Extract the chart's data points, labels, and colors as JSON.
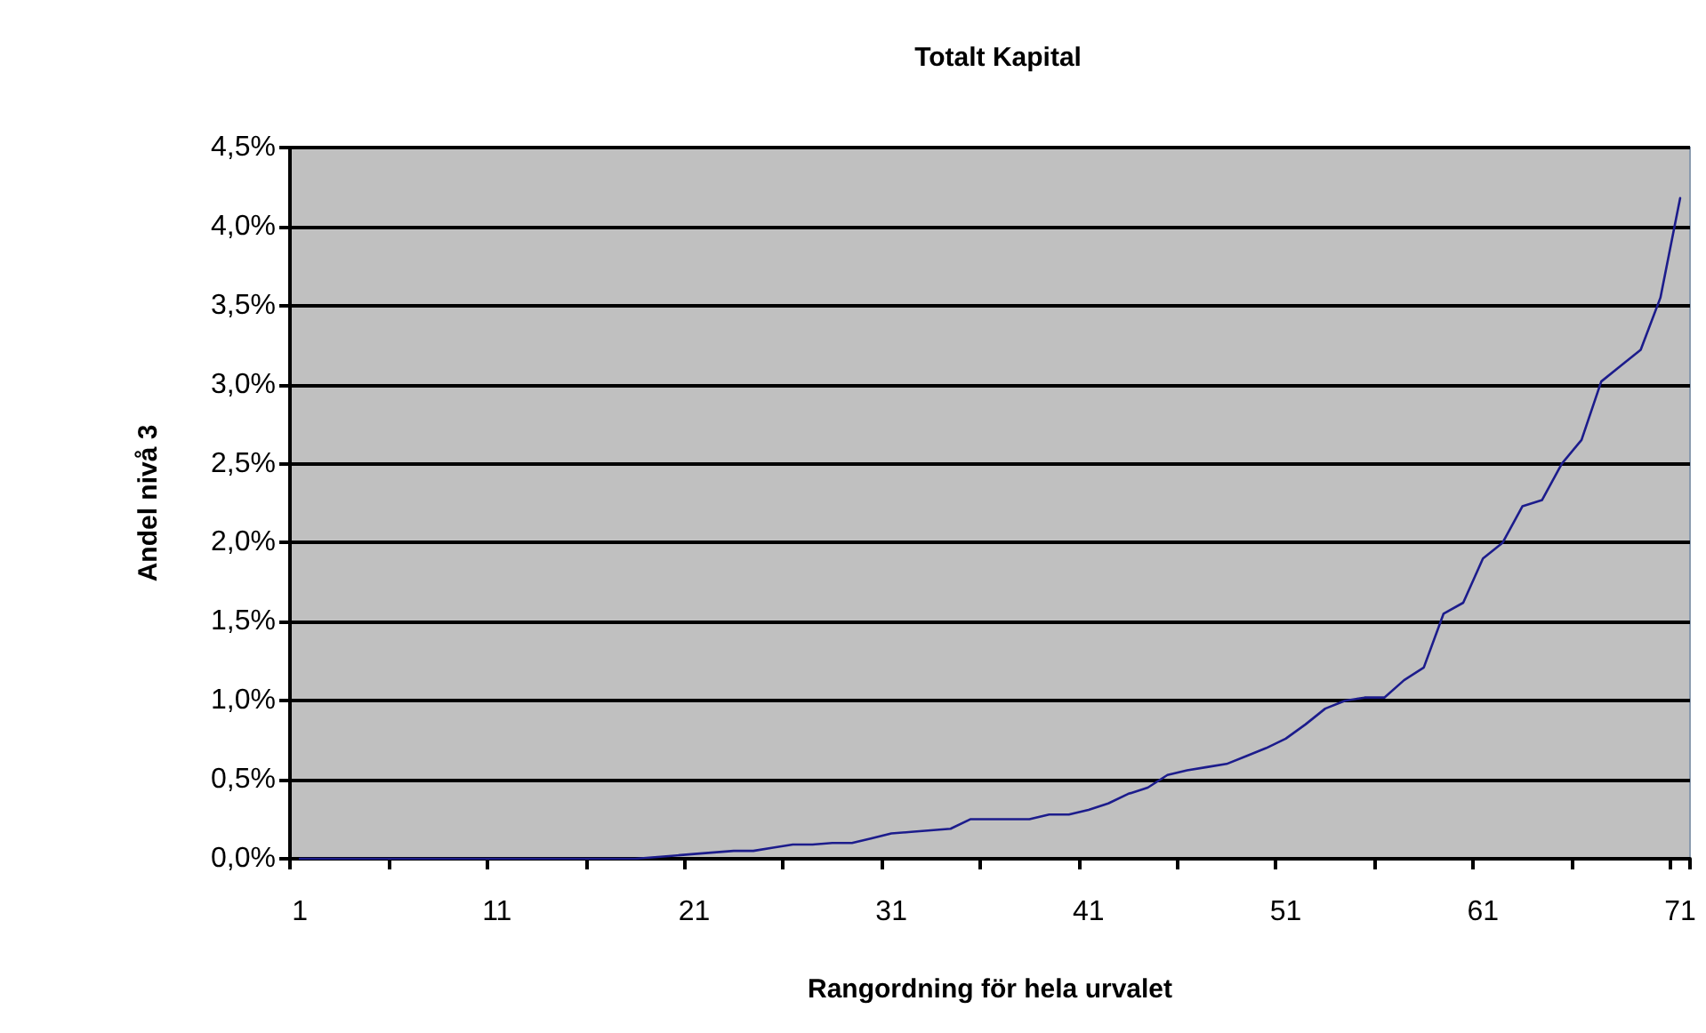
{
  "chart_data": {
    "type": "line",
    "title": "Totalt Kapital",
    "xlabel": "Rangordning för hela urvalet",
    "ylabel": "Andel nivå 3",
    "categories": [
      "1",
      null,
      null,
      null,
      null,
      null,
      null,
      null,
      null,
      null,
      "11",
      null,
      null,
      null,
      null,
      null,
      null,
      null,
      null,
      null,
      "21",
      null,
      null,
      null,
      null,
      null,
      null,
      null,
      null,
      null,
      "31",
      null,
      null,
      null,
      null,
      null,
      null,
      null,
      null,
      null,
      "41",
      null,
      null,
      null,
      null,
      null,
      null,
      null,
      null,
      null,
      "51",
      null,
      null,
      null,
      null,
      null,
      null,
      null,
      null,
      null,
      "61",
      null,
      null,
      null,
      null,
      null,
      null,
      null,
      null,
      null,
      "71"
    ],
    "series": [
      {
        "color": "#1c1c8c",
        "values": [
          0,
          0,
          0,
          0,
          0,
          0,
          0,
          0,
          0,
          0,
          0,
          0,
          0,
          0,
          0,
          0,
          0,
          0,
          0.01,
          0.02,
          0.03,
          0.04,
          0.05,
          0.05,
          0.07,
          0.09,
          0.09,
          0.1,
          0.1,
          0.13,
          0.16,
          0.17,
          0.18,
          0.19,
          0.25,
          0.25,
          0.25,
          0.25,
          0.28,
          0.28,
          0.31,
          0.35,
          0.41,
          0.45,
          0.53,
          0.56,
          0.58,
          0.6,
          0.65,
          0.7,
          0.76,
          0.85,
          0.95,
          1.0,
          1.02,
          1.02,
          1.13,
          1.21,
          1.55,
          1.62,
          1.9,
          2.0,
          2.23,
          2.27,
          2.5,
          2.65,
          3.02,
          3.12,
          3.22,
          3.55,
          4.18
        ]
      }
    ],
    "ylim": [
      0,
      4.5
    ],
    "yticks": [
      {
        "value": 0,
        "label": "0,0%"
      },
      {
        "value": 0.5,
        "label": "0,5%"
      },
      {
        "value": 1,
        "label": "1,0%"
      },
      {
        "value": 1.5,
        "label": "1,5%"
      },
      {
        "value": 2,
        "label": "2,0%"
      },
      {
        "value": 2.5,
        "label": "2,5%"
      },
      {
        "value": 3,
        "label": "3,0%"
      },
      {
        "value": 3.5,
        "label": "3,5%"
      },
      {
        "value": 4,
        "label": "4,0%"
      },
      {
        "value": 4.5,
        "label": "4,5%"
      }
    ],
    "grid": "y",
    "marker": "none",
    "line_style": "solid"
  }
}
